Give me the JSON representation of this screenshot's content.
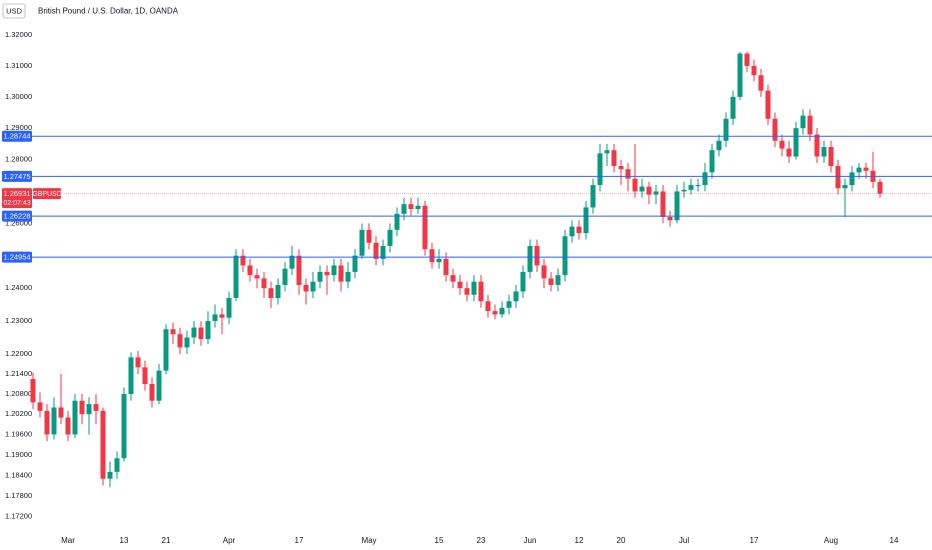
{
  "chart_data": {
    "type": "candlestick",
    "currency": "USD",
    "title": "British Pound / U.S. Dollar, 1D, OANDA",
    "log": true,
    "grid": false,
    "up_color": "#089981",
    "down_color": "#f23645",
    "level_color": "#2962ff",
    "ylim": [
      1.1681,
      1.3315
    ],
    "yticks": [
      {
        "value": 1.32,
        "label": "1.32000"
      },
      {
        "value": 1.31,
        "label": "1.31000"
      },
      {
        "value": 1.3,
        "label": "1.30000"
      },
      {
        "value": 1.29,
        "label": "1.29000"
      },
      {
        "value": 1.28,
        "label": "1.28000"
      },
      {
        "value": 1.26,
        "label": "1.26000"
      },
      {
        "value": 1.24,
        "label": "1.24000"
      },
      {
        "value": 1.23,
        "label": "1.23000"
      },
      {
        "value": 1.22,
        "label": "1.22000"
      },
      {
        "value": 1.214,
        "label": "1.21400"
      },
      {
        "value": 1.208,
        "label": "1.20800"
      },
      {
        "value": 1.202,
        "label": "1.20200"
      },
      {
        "value": 1.196,
        "label": "1.19600"
      },
      {
        "value": 1.19,
        "label": "1.19000"
      },
      {
        "value": 1.184,
        "label": "1.18400"
      },
      {
        "value": 1.178,
        "label": "1.17800"
      },
      {
        "value": 1.172,
        "label": "1.17200"
      }
    ],
    "levels": [
      1.28744,
      1.27475,
      1.26228,
      1.24954
    ],
    "current_price": {
      "value": 1.26931,
      "label": "GBPUSD",
      "countdown": "02:07:43",
      "color": "#f23645"
    },
    "categories": [
      null,
      null,
      null,
      null,
      null,
      "Mar",
      null,
      null,
      null,
      null,
      null,
      null,
      null,
      "13",
      null,
      null,
      null,
      null,
      null,
      "21",
      null,
      null,
      null,
      null,
      null,
      null,
      null,
      null,
      "Apr",
      null,
      null,
      null,
      null,
      null,
      null,
      null,
      null,
      null,
      "17",
      null,
      null,
      null,
      null,
      null,
      null,
      null,
      null,
      null,
      "May",
      null,
      null,
      null,
      null,
      null,
      null,
      null,
      null,
      null,
      "15",
      null,
      null,
      null,
      null,
      null,
      "23",
      null,
      null,
      null,
      null,
      null,
      null,
      "Jun",
      null,
      null,
      null,
      null,
      null,
      null,
      "12",
      null,
      null,
      null,
      null,
      null,
      "20",
      null,
      null,
      null,
      null,
      null,
      null,
      null,
      null,
      "Jul",
      null,
      null,
      null,
      null,
      null,
      null,
      null,
      null,
      null,
      "17",
      null,
      null,
      null,
      null,
      null,
      null,
      null,
      null,
      null,
      null,
      "Aug",
      null,
      null,
      null,
      null,
      null,
      null,
      null,
      null,
      "14"
    ],
    "open": [
      1.2125,
      1.2055,
      1.203,
      1.196,
      1.204,
      1.201,
      1.196,
      1.206,
      1.202,
      1.205,
      1.203,
      1.183,
      1.185,
      1.189,
      1.208,
      1.219,
      1.216,
      1.211,
      1.206,
      1.215,
      1.2275,
      1.226,
      1.222,
      1.225,
      1.228,
      1.2245,
      1.23,
      1.232,
      1.231,
      1.237,
      1.25,
      1.247,
      1.244,
      1.243,
      1.24,
      1.237,
      1.241,
      1.246,
      1.25,
      1.241,
      1.239,
      1.242,
      1.245,
      1.244,
      1.247,
      1.242,
      1.245,
      1.25,
      1.258,
      1.254,
      1.249,
      1.253,
      1.258,
      1.263,
      1.266,
      1.2645,
      1.2655,
      1.252,
      1.248,
      1.249,
      1.244,
      1.242,
      1.24,
      1.238,
      1.242,
      1.236,
      1.233,
      1.232,
      1.234,
      1.236,
      1.239,
      1.245,
      1.253,
      1.247,
      1.243,
      1.241,
      1.244,
      1.256,
      1.259,
      1.257,
      1.265,
      1.272,
      1.282,
      1.283,
      1.278,
      1.277,
      1.274,
      1.27,
      1.2715,
      1.269,
      1.27,
      1.262,
      1.261,
      1.27,
      1.2705,
      1.272,
      1.272,
      1.276,
      1.283,
      1.286,
      1.293,
      1.3,
      1.314,
      1.31,
      1.307,
      1.302,
      1.293,
      1.286,
      1.2835,
      1.281,
      1.29,
      1.294,
      1.288,
      1.281,
      1.284,
      1.278,
      1.271,
      1.272,
      1.276,
      1.2775,
      1.2765,
      1.273,
      null,
      null
    ],
    "high": [
      1.2145,
      1.2085,
      1.205,
      1.207,
      1.214,
      1.203,
      1.208,
      1.208,
      1.207,
      1.208,
      1.204,
      1.188,
      1.191,
      1.21,
      1.2205,
      1.221,
      1.218,
      1.213,
      1.217,
      1.229,
      1.2295,
      1.228,
      1.227,
      1.23,
      1.23,
      1.233,
      1.235,
      1.234,
      1.239,
      1.252,
      1.252,
      1.249,
      1.246,
      1.245,
      1.242,
      1.243,
      1.248,
      1.253,
      1.252,
      1.243,
      1.245,
      1.247,
      1.247,
      1.249,
      1.249,
      1.248,
      1.252,
      1.26,
      1.26,
      1.256,
      1.255,
      1.26,
      1.265,
      1.268,
      1.268,
      1.268,
      1.267,
      1.254,
      1.252,
      1.251,
      1.246,
      1.244,
      1.242,
      1.244,
      1.244,
      1.238,
      1.235,
      1.236,
      1.238,
      1.241,
      1.247,
      1.255,
      1.255,
      1.249,
      1.245,
      1.246,
      1.258,
      1.261,
      1.261,
      1.267,
      1.274,
      1.285,
      1.285,
      1.285,
      1.28,
      1.279,
      1.285,
      1.274,
      1.273,
      1.272,
      1.272,
      1.264,
      1.272,
      1.273,
      1.274,
      1.274,
      1.279,
      1.285,
      1.288,
      1.295,
      1.302,
      1.3145,
      1.3145,
      1.312,
      1.309,
      1.304,
      1.295,
      1.288,
      1.286,
      1.292,
      1.296,
      1.296,
      1.29,
      1.286,
      1.286,
      1.28,
      1.274,
      1.278,
      1.279,
      1.279,
      1.2825,
      1.274,
      null,
      null
    ],
    "low": [
      1.2035,
      1.201,
      1.194,
      1.1945,
      1.199,
      1.194,
      1.195,
      1.199,
      1.196,
      1.199,
      1.181,
      1.1805,
      1.183,
      1.188,
      1.206,
      1.214,
      1.209,
      1.204,
      1.205,
      1.214,
      1.223,
      1.22,
      1.22,
      1.223,
      1.2225,
      1.223,
      1.228,
      1.226,
      1.229,
      1.236,
      1.245,
      1.242,
      1.24,
      1.237,
      1.234,
      1.235,
      1.239,
      1.244,
      1.238,
      1.235,
      1.237,
      1.24,
      1.238,
      1.242,
      1.239,
      1.24,
      1.243,
      1.249,
      1.252,
      1.247,
      1.247,
      1.251,
      1.256,
      1.261,
      1.2625,
      1.263,
      1.25,
      1.246,
      1.246,
      1.242,
      1.24,
      1.238,
      1.236,
      1.236,
      1.234,
      1.231,
      1.2305,
      1.231,
      1.232,
      1.234,
      1.237,
      1.243,
      1.245,
      1.24,
      1.239,
      1.239,
      1.242,
      1.254,
      1.255,
      1.255,
      1.263,
      1.27,
      1.278,
      1.276,
      1.272,
      1.27,
      1.268,
      1.268,
      1.266,
      1.266,
      1.26,
      1.259,
      1.26,
      1.268,
      1.269,
      1.27,
      1.27,
      1.274,
      1.281,
      1.284,
      1.291,
      1.299,
      1.308,
      1.305,
      1.3,
      1.291,
      1.284,
      1.281,
      1.279,
      1.28,
      1.288,
      1.286,
      1.279,
      1.279,
      1.276,
      1.269,
      1.262,
      1.27,
      1.274,
      1.274,
      1.271,
      1.268,
      null,
      null
    ],
    "close": [
      1.2055,
      1.203,
      1.196,
      1.204,
      1.201,
      1.196,
      1.206,
      1.202,
      1.205,
      1.203,
      1.183,
      1.185,
      1.189,
      1.208,
      1.219,
      1.216,
      1.211,
      1.206,
      1.215,
      1.2275,
      1.226,
      1.222,
      1.225,
      1.228,
      1.2245,
      1.23,
      1.232,
      1.231,
      1.237,
      1.25,
      1.247,
      1.244,
      1.243,
      1.24,
      1.237,
      1.241,
      1.246,
      1.25,
      1.241,
      1.239,
      1.242,
      1.245,
      1.244,
      1.247,
      1.242,
      1.245,
      1.25,
      1.258,
      1.254,
      1.249,
      1.253,
      1.258,
      1.263,
      1.266,
      1.2645,
      1.2655,
      1.252,
      1.248,
      1.249,
      1.244,
      1.242,
      1.24,
      1.238,
      1.242,
      1.236,
      1.233,
      1.232,
      1.234,
      1.236,
      1.239,
      1.245,
      1.253,
      1.247,
      1.243,
      1.241,
      1.244,
      1.256,
      1.259,
      1.257,
      1.265,
      1.272,
      1.282,
      1.283,
      1.278,
      1.277,
      1.274,
      1.27,
      1.2715,
      1.269,
      1.27,
      1.262,
      1.261,
      1.27,
      1.2705,
      1.272,
      1.272,
      1.276,
      1.283,
      1.286,
      1.293,
      1.3,
      1.314,
      1.31,
      1.307,
      1.302,
      1.293,
      1.286,
      1.2835,
      1.281,
      1.29,
      1.294,
      1.288,
      1.281,
      1.284,
      1.278,
      1.271,
      1.272,
      1.276,
      1.2775,
      1.2765,
      1.273,
      1.26931,
      null,
      null
    ]
  }
}
